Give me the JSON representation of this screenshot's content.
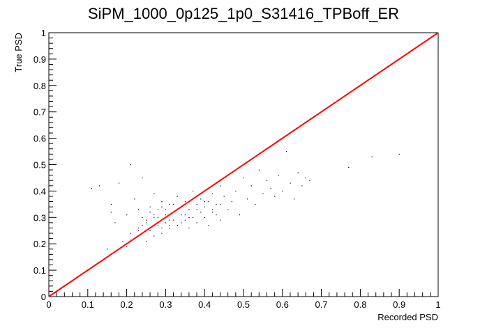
{
  "chart_data": {
    "type": "scatter",
    "title": "SiPM_1000_0p125_1p0_S31416_TPBoff_ER",
    "xlabel": "Recorded PSD",
    "ylabel": "True PSD",
    "xlim": [
      0,
      1
    ],
    "ylim": [
      0,
      1
    ],
    "x_ticks": [
      "0",
      "0.1",
      "0.2",
      "0.3",
      "0.4",
      "0.5",
      "0.6",
      "0.7",
      "0.8",
      "0.9",
      "1"
    ],
    "y_ticks": [
      "0",
      "0.1",
      "0.2",
      "0.3",
      "0.4",
      "0.5",
      "0.6",
      "0.7",
      "0.8",
      "0.9",
      "1"
    ],
    "grid": false,
    "legend": "none",
    "series": [
      {
        "style": "line",
        "color": "#ff0000",
        "x": [
          0,
          1
        ],
        "y": [
          0,
          1
        ]
      },
      {
        "style": "markers",
        "color": "#000000",
        "x": [
          0.11,
          0.13,
          0.15,
          0.16,
          0.16,
          0.17,
          0.18,
          0.19,
          0.2,
          0.2,
          0.21,
          0.21,
          0.22,
          0.22,
          0.23,
          0.23,
          0.24,
          0.24,
          0.25,
          0.25,
          0.26,
          0.26,
          0.27,
          0.27,
          0.28,
          0.28,
          0.29,
          0.29,
          0.3,
          0.3,
          0.31,
          0.31,
          0.32,
          0.32,
          0.33,
          0.33,
          0.34,
          0.34,
          0.35,
          0.35,
          0.36,
          0.36,
          0.37,
          0.37,
          0.38,
          0.38,
          0.39,
          0.39,
          0.4,
          0.4,
          0.41,
          0.41,
          0.42,
          0.42,
          0.43,
          0.43,
          0.44,
          0.44,
          0.45,
          0.46,
          0.47,
          0.48,
          0.49,
          0.5,
          0.51,
          0.52,
          0.53,
          0.54,
          0.55,
          0.56,
          0.57,
          0.58,
          0.59,
          0.6,
          0.61,
          0.62,
          0.63,
          0.64,
          0.65,
          0.66,
          0.67,
          0.77,
          0.83,
          0.9,
          0.27,
          0.29,
          0.31,
          0.33,
          0.35,
          0.3,
          0.28,
          0.32,
          0.34,
          0.26,
          0.24,
          0.36,
          0.38,
          0.4,
          0.42,
          0.44,
          0.25,
          0.23,
          0.27,
          0.29,
          0.31
        ],
        "y": [
          0.41,
          0.42,
          0.18,
          0.35,
          0.32,
          0.28,
          0.43,
          0.21,
          0.19,
          0.31,
          0.5,
          0.24,
          0.22,
          0.37,
          0.26,
          0.33,
          0.3,
          0.45,
          0.21,
          0.28,
          0.34,
          0.25,
          0.3,
          0.39,
          0.27,
          0.33,
          0.24,
          0.36,
          0.31,
          0.28,
          0.26,
          0.35,
          0.32,
          0.29,
          0.38,
          0.27,
          0.31,
          0.34,
          0.29,
          0.36,
          0.33,
          0.26,
          0.3,
          0.4,
          0.35,
          0.28,
          0.32,
          0.37,
          0.34,
          0.3,
          0.27,
          0.36,
          0.39,
          0.33,
          0.31,
          0.35,
          0.42,
          0.29,
          0.38,
          0.33,
          0.36,
          0.4,
          0.31,
          0.45,
          0.37,
          0.42,
          0.35,
          0.48,
          0.39,
          0.44,
          0.41,
          0.38,
          0.46,
          0.4,
          0.55,
          0.43,
          0.37,
          0.47,
          0.42,
          0.45,
          0.44,
          0.49,
          0.53,
          0.54,
          0.23,
          0.26,
          0.29,
          0.27,
          0.31,
          0.33,
          0.3,
          0.35,
          0.28,
          0.32,
          0.27,
          0.3,
          0.33,
          0.36,
          0.32,
          0.35,
          0.29,
          0.25,
          0.31,
          0.34,
          0.27
        ]
      }
    ]
  }
}
